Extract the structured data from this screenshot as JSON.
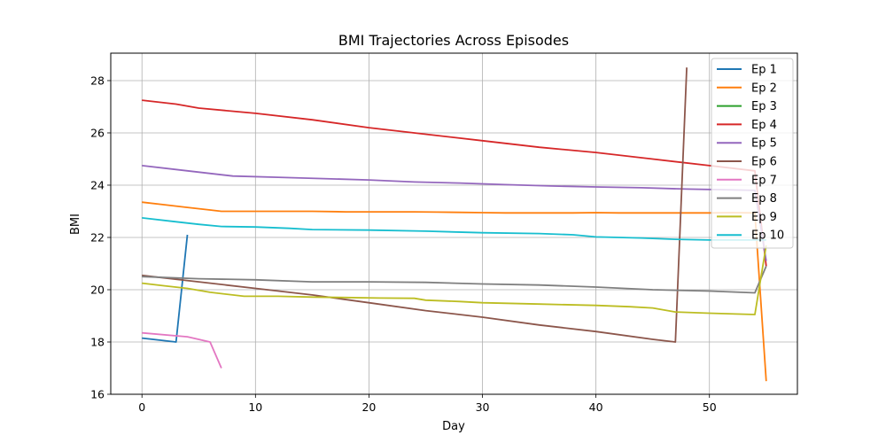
{
  "chart_data": {
    "type": "line",
    "title": "BMI Trajectories Across Episodes",
    "xlabel": "Day",
    "ylabel": "BMI",
    "xlim": [
      -2.75,
      57.75
    ],
    "ylim": [
      16.0,
      29.05
    ],
    "xticks": [
      0,
      10,
      20,
      30,
      40,
      50
    ],
    "yticks": [
      16,
      18,
      20,
      22,
      24,
      26,
      28
    ],
    "grid": true,
    "legend_position": "top-right",
    "series": [
      {
        "name": "Ep 1",
        "color": "#1f77b4",
        "x": [
          0,
          3,
          4
        ],
        "y": [
          18.15,
          18.0,
          22.1
        ]
      },
      {
        "name": "Ep 2",
        "color": "#ff7f0e",
        "x": [
          0,
          2,
          4,
          6,
          7,
          8,
          10,
          12,
          15,
          18,
          20,
          22,
          24,
          26,
          28,
          30,
          32,
          34,
          36,
          38,
          40,
          42,
          44,
          46,
          48,
          50,
          52,
          54,
          55
        ],
        "y": [
          23.35,
          23.25,
          23.15,
          23.05,
          23.0,
          23.0,
          23.0,
          23.0,
          23.0,
          22.98,
          22.98,
          22.98,
          22.98,
          22.97,
          22.96,
          22.95,
          22.94,
          22.94,
          22.94,
          22.94,
          22.95,
          22.94,
          22.94,
          22.94,
          22.94,
          22.94,
          22.95,
          22.94,
          16.5
        ]
      },
      {
        "name": "Ep 3",
        "color": "#2ca02c",
        "x": [],
        "y": []
      },
      {
        "name": "Ep 4",
        "color": "#d62728",
        "x": [
          0,
          3,
          5,
          10,
          15,
          20,
          25,
          30,
          35,
          40,
          45,
          50,
          54,
          55
        ],
        "y": [
          27.25,
          27.1,
          26.95,
          26.75,
          26.5,
          26.2,
          25.95,
          25.7,
          25.45,
          25.25,
          25.0,
          24.75,
          24.55,
          20.9
        ]
      },
      {
        "name": "Ep 5",
        "color": "#9467bd",
        "x": [
          0,
          4,
          8,
          12,
          16,
          20,
          24,
          28,
          32,
          36,
          40,
          44,
          48,
          52,
          54,
          55
        ],
        "y": [
          24.75,
          24.55,
          24.35,
          24.3,
          24.25,
          24.2,
          24.12,
          24.08,
          24.02,
          23.97,
          23.93,
          23.9,
          23.85,
          23.82,
          23.8,
          21.1
        ]
      },
      {
        "name": "Ep 6",
        "color": "#8c564b",
        "x": [
          0,
          5,
          10,
          15,
          20,
          25,
          30,
          35,
          40,
          45,
          47,
          48
        ],
        "y": [
          20.55,
          20.3,
          20.05,
          19.8,
          19.5,
          19.2,
          18.95,
          18.65,
          18.4,
          18.1,
          18.0,
          28.5
        ]
      },
      {
        "name": "Ep 7",
        "color": "#e377c2",
        "x": [
          0,
          4,
          6,
          7
        ],
        "y": [
          18.35,
          18.2,
          18.0,
          17.0
        ]
      },
      {
        "name": "Ep 8",
        "color": "#7f7f7f",
        "x": [
          0,
          5,
          10,
          15,
          20,
          25,
          30,
          35,
          40,
          45,
          50,
          54,
          55
        ],
        "y": [
          20.5,
          20.42,
          20.38,
          20.3,
          20.3,
          20.28,
          20.22,
          20.18,
          20.1,
          20.0,
          19.95,
          19.88,
          20.9
        ]
      },
      {
        "name": "Ep 9",
        "color": "#bcbd22",
        "x": [
          0,
          2,
          4,
          6,
          9,
          12,
          15,
          18,
          21,
          24,
          25,
          28,
          30,
          35,
          40,
          43,
          45,
          47,
          50,
          54,
          55
        ],
        "y": [
          20.25,
          20.15,
          20.05,
          19.9,
          19.75,
          19.75,
          19.72,
          19.7,
          19.68,
          19.67,
          19.6,
          19.55,
          19.5,
          19.45,
          19.4,
          19.35,
          19.3,
          19.15,
          19.1,
          19.05,
          21.7
        ]
      },
      {
        "name": "Ep 10",
        "color": "#17becf",
        "x": [
          0,
          3,
          5,
          7,
          10,
          13,
          15,
          20,
          25,
          30,
          35,
          38,
          40,
          44,
          47,
          50,
          54,
          55
        ],
        "y": [
          22.75,
          22.6,
          22.5,
          22.42,
          22.4,
          22.35,
          22.3,
          22.28,
          22.24,
          22.18,
          22.15,
          22.1,
          22.02,
          21.98,
          21.93,
          21.9,
          21.9,
          21.9
        ]
      }
    ]
  }
}
